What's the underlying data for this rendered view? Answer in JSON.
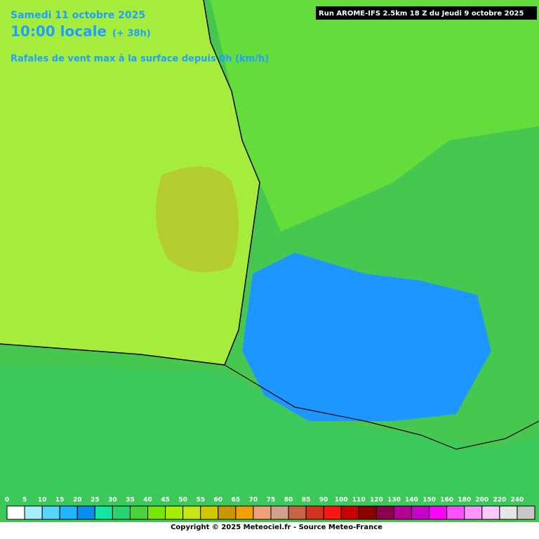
{
  "header": {
    "date_line": "Samedi 11 octobre 2025",
    "time_line": "10:00 locale",
    "lead": "(+ 38h)",
    "subtitle": "Rafales de vent max à la surface depuis 0h (km/h)",
    "run_info": "Run AROME-IFS 2.5km 18 Z du Jeudi 9 octobre 2025"
  },
  "legend": {
    "values": [
      0,
      5,
      10,
      15,
      20,
      25,
      30,
      35,
      40,
      45,
      50,
      55,
      60,
      65,
      70,
      75,
      80,
      85,
      90,
      100,
      110,
      120,
      130,
      140,
      150,
      160,
      180,
      200,
      220,
      240
    ],
    "colors": [
      "#ffffff",
      "#a8ecff",
      "#55d5ff",
      "#22b4ff",
      "#0a8cf0",
      "#14e6a0",
      "#28d26e",
      "#4bd23c",
      "#78e600",
      "#a5ee00",
      "#c8e614",
      "#d2c800",
      "#c89600",
      "#f0a000",
      "#f0a07a",
      "#d2a08c",
      "#c86446",
      "#d2321e",
      "#ff1414",
      "#c80000",
      "#8c0000",
      "#8c0050",
      "#b40096",
      "#c800c8",
      "#ff00ff",
      "#ff50ff",
      "#ff96ff",
      "#ffc8ff",
      "#e6e6e6",
      "#c8c8c8"
    ]
  },
  "footer": {
    "copyright": "Copyright © 2025 Meteociel.fr - Source Meteo-France"
  }
}
